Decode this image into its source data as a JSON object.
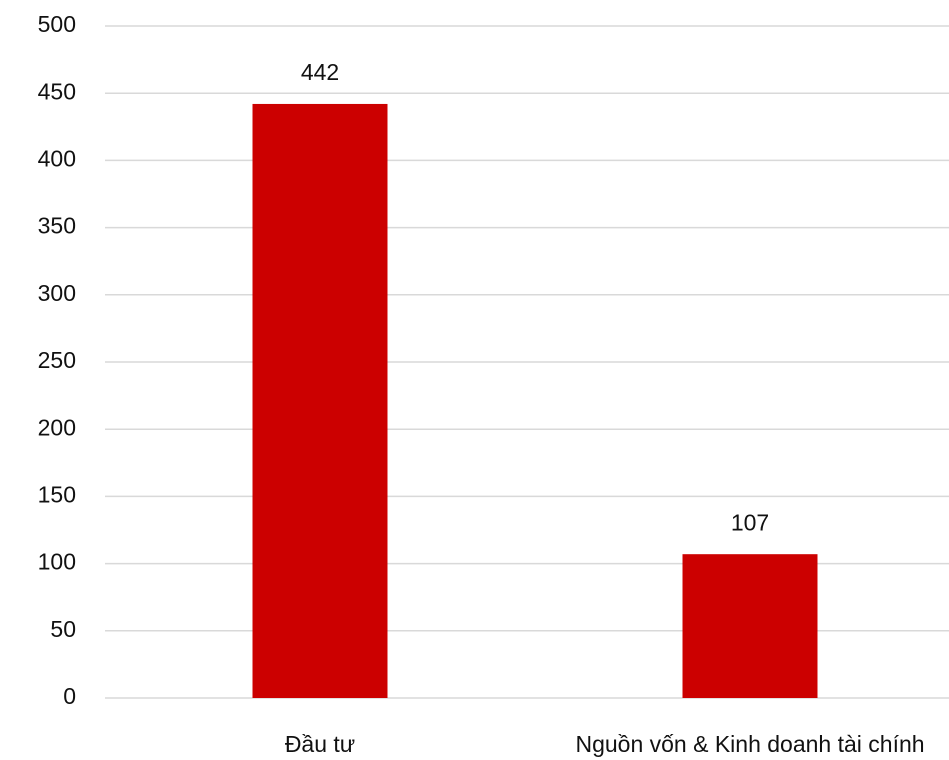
{
  "chart_data": {
    "type": "bar",
    "categories": [
      "Đầu tư",
      "Nguồn vốn & Kinh doanh tài chính"
    ],
    "values": [
      442,
      107
    ],
    "color": "#cc0000",
    "ylim": [
      0,
      500
    ],
    "yticks": [
      0,
      50,
      100,
      150,
      200,
      250,
      300,
      350,
      400,
      450,
      500
    ],
    "grid": true
  }
}
